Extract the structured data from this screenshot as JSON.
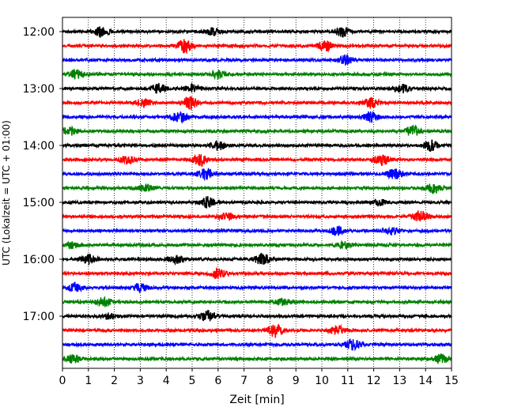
{
  "chart_data": {
    "type": "line",
    "title": "",
    "xlabel": "Zeit  [min]",
    "ylabel": "UTC (Lokalzeit = UTC + 01:00)",
    "xlim": [
      0,
      15
    ],
    "x_ticks": [
      "0",
      "1",
      "2",
      "3",
      "4",
      "5",
      "6",
      "7",
      "8",
      "9",
      "10",
      "11",
      "12",
      "13",
      "14",
      "15"
    ],
    "y_tick_labels": [
      "12:00",
      "13:00",
      "14:00",
      "15:00",
      "16:00",
      "17:00"
    ],
    "grid": "vertical-dotted",
    "trace_colors": [
      "#000000",
      "#ff0000",
      "#0000ff",
      "#008000"
    ],
    "traces": [
      {
        "start": "12:00",
        "color": "#000000",
        "bursts": [
          {
            "t": 1.5,
            "amp": 0.7
          },
          {
            "t": 5.8,
            "amp": 0.5
          },
          {
            "t": 10.8,
            "amp": 0.6
          }
        ]
      },
      {
        "start": "12:15",
        "color": "#ff0000",
        "bursts": [
          {
            "t": 4.7,
            "amp": 0.9
          },
          {
            "t": 10.1,
            "amp": 0.7
          }
        ]
      },
      {
        "start": "12:30",
        "color": "#0000ff",
        "bursts": [
          {
            "t": 10.9,
            "amp": 0.6
          }
        ]
      },
      {
        "start": "12:45",
        "color": "#008000",
        "bursts": [
          {
            "t": 0.5,
            "amp": 0.6
          },
          {
            "t": 6.0,
            "amp": 0.5
          }
        ]
      },
      {
        "start": "13:00",
        "color": "#000000",
        "bursts": [
          {
            "t": 3.7,
            "amp": 0.6
          },
          {
            "t": 5.0,
            "amp": 0.5
          },
          {
            "t": 13.1,
            "amp": 0.5
          }
        ]
      },
      {
        "start": "13:15",
        "color": "#ff0000",
        "bursts": [
          {
            "t": 3.1,
            "amp": 0.5
          },
          {
            "t": 4.9,
            "amp": 0.9
          },
          {
            "t": 11.9,
            "amp": 0.7
          }
        ]
      },
      {
        "start": "13:30",
        "color": "#0000ff",
        "bursts": [
          {
            "t": 4.5,
            "amp": 0.8
          },
          {
            "t": 11.9,
            "amp": 0.7
          }
        ]
      },
      {
        "start": "13:45",
        "color": "#008000",
        "bursts": [
          {
            "t": 0.3,
            "amp": 0.5
          },
          {
            "t": 13.5,
            "amp": 0.7
          }
        ]
      },
      {
        "start": "14:00",
        "color": "#000000",
        "bursts": [
          {
            "t": 6.0,
            "amp": 0.6
          },
          {
            "t": 14.2,
            "amp": 0.7
          }
        ]
      },
      {
        "start": "14:15",
        "color": "#ff0000",
        "bursts": [
          {
            "t": 2.5,
            "amp": 0.5
          },
          {
            "t": 5.3,
            "amp": 0.7
          },
          {
            "t": 12.3,
            "amp": 0.8
          }
        ]
      },
      {
        "start": "14:30",
        "color": "#0000ff",
        "bursts": [
          {
            "t": 5.5,
            "amp": 0.8
          },
          {
            "t": 12.8,
            "amp": 0.7
          }
        ]
      },
      {
        "start": "14:45",
        "color": "#008000",
        "bursts": [
          {
            "t": 3.2,
            "amp": 0.5
          },
          {
            "t": 14.3,
            "amp": 0.6
          }
        ]
      },
      {
        "start": "15:00",
        "color": "#000000",
        "bursts": [
          {
            "t": 5.6,
            "amp": 0.7
          },
          {
            "t": 12.2,
            "amp": 0.4
          }
        ]
      },
      {
        "start": "15:15",
        "color": "#ff0000",
        "bursts": [
          {
            "t": 6.3,
            "amp": 0.6
          },
          {
            "t": 13.8,
            "amp": 0.8
          }
        ]
      },
      {
        "start": "15:30",
        "color": "#0000ff",
        "bursts": [
          {
            "t": 10.6,
            "amp": 0.6
          },
          {
            "t": 12.7,
            "amp": 0.5
          }
        ]
      },
      {
        "start": "15:45",
        "color": "#008000",
        "bursts": [
          {
            "t": 0.4,
            "amp": 0.4
          },
          {
            "t": 10.9,
            "amp": 0.4
          }
        ]
      },
      {
        "start": "16:00",
        "color": "#000000",
        "bursts": [
          {
            "t": 1.0,
            "amp": 0.6
          },
          {
            "t": 4.4,
            "amp": 0.5
          },
          {
            "t": 7.7,
            "amp": 0.8
          }
        ]
      },
      {
        "start": "16:15",
        "color": "#ff0000",
        "bursts": [
          {
            "t": 6.0,
            "amp": 0.7
          }
        ]
      },
      {
        "start": "16:30",
        "color": "#0000ff",
        "bursts": [
          {
            "t": 0.5,
            "amp": 0.6
          },
          {
            "t": 3.0,
            "amp": 0.5
          }
        ]
      },
      {
        "start": "16:45",
        "color": "#008000",
        "bursts": [
          {
            "t": 1.6,
            "amp": 0.6
          },
          {
            "t": 8.5,
            "amp": 0.4
          }
        ]
      },
      {
        "start": "17:00",
        "color": "#000000",
        "bursts": [
          {
            "t": 1.8,
            "amp": 0.4
          },
          {
            "t": 5.6,
            "amp": 0.7
          }
        ]
      },
      {
        "start": "17:15",
        "color": "#ff0000",
        "bursts": [
          {
            "t": 8.2,
            "amp": 0.9
          },
          {
            "t": 10.6,
            "amp": 0.6
          }
        ]
      },
      {
        "start": "17:30",
        "color": "#0000ff",
        "bursts": [
          {
            "t": 11.2,
            "amp": 0.7
          }
        ]
      },
      {
        "start": "17:45",
        "color": "#008000",
        "bursts": [
          {
            "t": 0.4,
            "amp": 0.5
          },
          {
            "t": 14.6,
            "amp": 0.6
          }
        ]
      }
    ]
  }
}
